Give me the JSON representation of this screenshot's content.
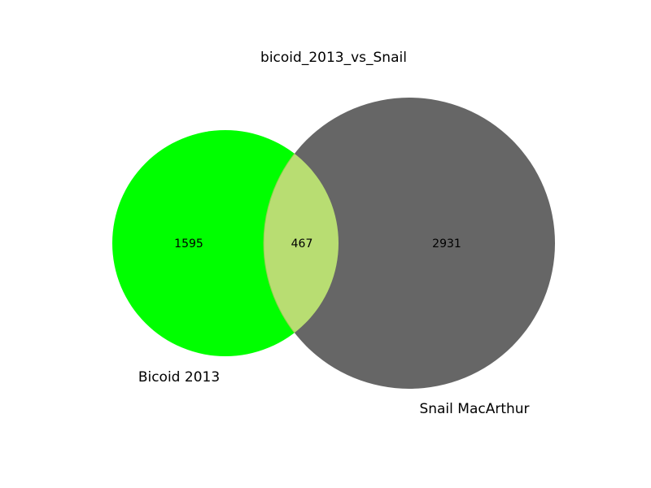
{
  "title": "bicoid_2013_vs_Snail",
  "sets": [
    {
      "name": "Bicoid 2013",
      "only_count": "1595",
      "color": "#00ff00"
    },
    {
      "name": "Snail MacArthur",
      "only_count": "2931",
      "color": "#666666"
    }
  ],
  "intersection": {
    "count": "467",
    "color": "#b8dd72"
  },
  "chart_data": {
    "type": "venn",
    "title": "bicoid_2013_vs_Snail",
    "sets": [
      "Bicoid 2013",
      "Snail MacArthur"
    ],
    "values": {
      "Bicoid 2013 only": 1595,
      "Bicoid 2013 & Snail MacArthur": 467,
      "Snail MacArthur only": 2931
    }
  }
}
